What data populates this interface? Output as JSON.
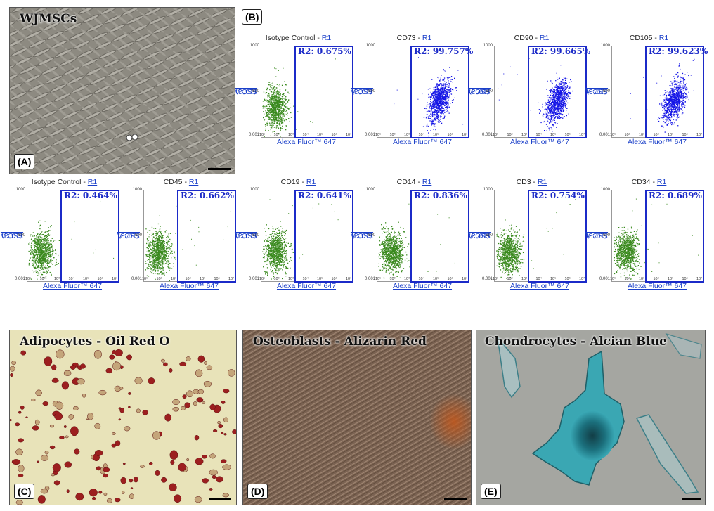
{
  "panels": {
    "A": {
      "tag": "(A)",
      "title": "WJMSCs"
    },
    "B": {
      "tag": "(B)"
    },
    "C": {
      "tag": "(C)",
      "title": "Adipocytes - Oil Red O"
    },
    "D": {
      "tag": "(D)",
      "title": "Osteoblasts - Alizarin Red"
    },
    "E": {
      "tag": "(E)",
      "title": "Chondrocytes - Alcian Blue"
    }
  },
  "plot_common": {
    "gate_name": "R1",
    "y_axis": "SSC-A",
    "y_unit": " (10^3)",
    "x_axis": "Alexa Fluor™ 647",
    "y_ticks": [
      "1000",
      "500",
      "0.001"
    ],
    "x_ticks": [
      "10¹",
      "10²",
      "10³",
      "10⁴",
      "10⁵",
      "10⁶",
      "10⁷"
    ]
  },
  "plots": [
    {
      "marker": "Isotype Control",
      "r2": "R2: 0.675%",
      "positive": false,
      "color": "#3a8a1e"
    },
    {
      "marker": "CD73",
      "r2": "R2: 99.757%",
      "positive": true,
      "color": "#1515e6"
    },
    {
      "marker": "CD90",
      "r2": "R2: 99.665%",
      "positive": true,
      "color": "#1515e6"
    },
    {
      "marker": "CD105",
      "r2": "R2: 99.623%",
      "positive": true,
      "color": "#1515e6"
    },
    {
      "marker": "Isotype Control",
      "r2": "R2: 0.464%",
      "positive": false,
      "color": "#3a8a1e"
    },
    {
      "marker": "CD45",
      "r2": "R2: 0.662%",
      "positive": false,
      "color": "#3a8a1e"
    },
    {
      "marker": "CD19",
      "r2": "R2: 0.641%",
      "positive": false,
      "color": "#3a8a1e"
    },
    {
      "marker": "CD14",
      "r2": "R2: 0.836%",
      "positive": false,
      "color": "#3a8a1e"
    },
    {
      "marker": "CD3",
      "r2": "R2: 0.754%",
      "positive": false,
      "color": "#3a8a1e"
    },
    {
      "marker": "CD34",
      "r2": "R2: 0.689%",
      "positive": false,
      "color": "#3a8a1e"
    }
  ],
  "colors": {
    "gate": "#1b2ac8",
    "link": "#1a3fc9",
    "negative_events": "#3a8a1e",
    "positive_events": "#1515e6"
  }
}
